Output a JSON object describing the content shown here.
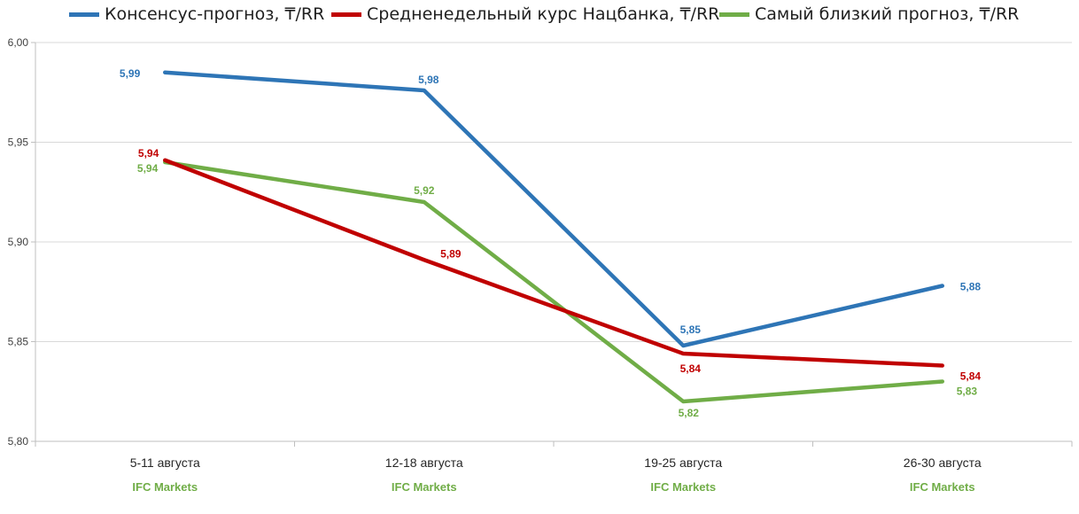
{
  "chart_data": {
    "type": "line",
    "categories": [
      "5-11 августа",
      "12-18 августа",
      "19-25 августа",
      "26-30 августа"
    ],
    "secondary_labels": [
      "IFC Markets",
      "IFC Markets",
      "IFC Markets",
      "IFC Markets"
    ],
    "series": [
      {
        "name": "Консенсус-прогноз, ₸/RR",
        "color": "#2e75b6",
        "values": [
          5.985,
          5.976,
          5.848,
          5.878
        ],
        "labels": [
          "5,99",
          "5,98",
          "5,85",
          "5,88"
        ]
      },
      {
        "name": "Средненедельный курс Нацбанка, ₸/RR",
        "color": "#c00000",
        "values": [
          5.941,
          5.891,
          5.844,
          5.838
        ],
        "labels": [
          "5,94",
          "5,89",
          "5,84",
          "5,84"
        ]
      },
      {
        "name": "Самый близкий прогноз, ₸/RR",
        "color": "#70ad47",
        "values": [
          5.94,
          5.92,
          5.82,
          5.83
        ],
        "labels": [
          "5,94",
          "5,92",
          "5,82",
          "5,83"
        ]
      }
    ],
    "ylim": [
      5.8,
      6.0
    ],
    "yticks": [
      "5,80",
      "5,85",
      "5,90",
      "5,95",
      "6,00"
    ],
    "grid": true,
    "legend_position": "top",
    "secondary_label_color": "#70ad47"
  }
}
